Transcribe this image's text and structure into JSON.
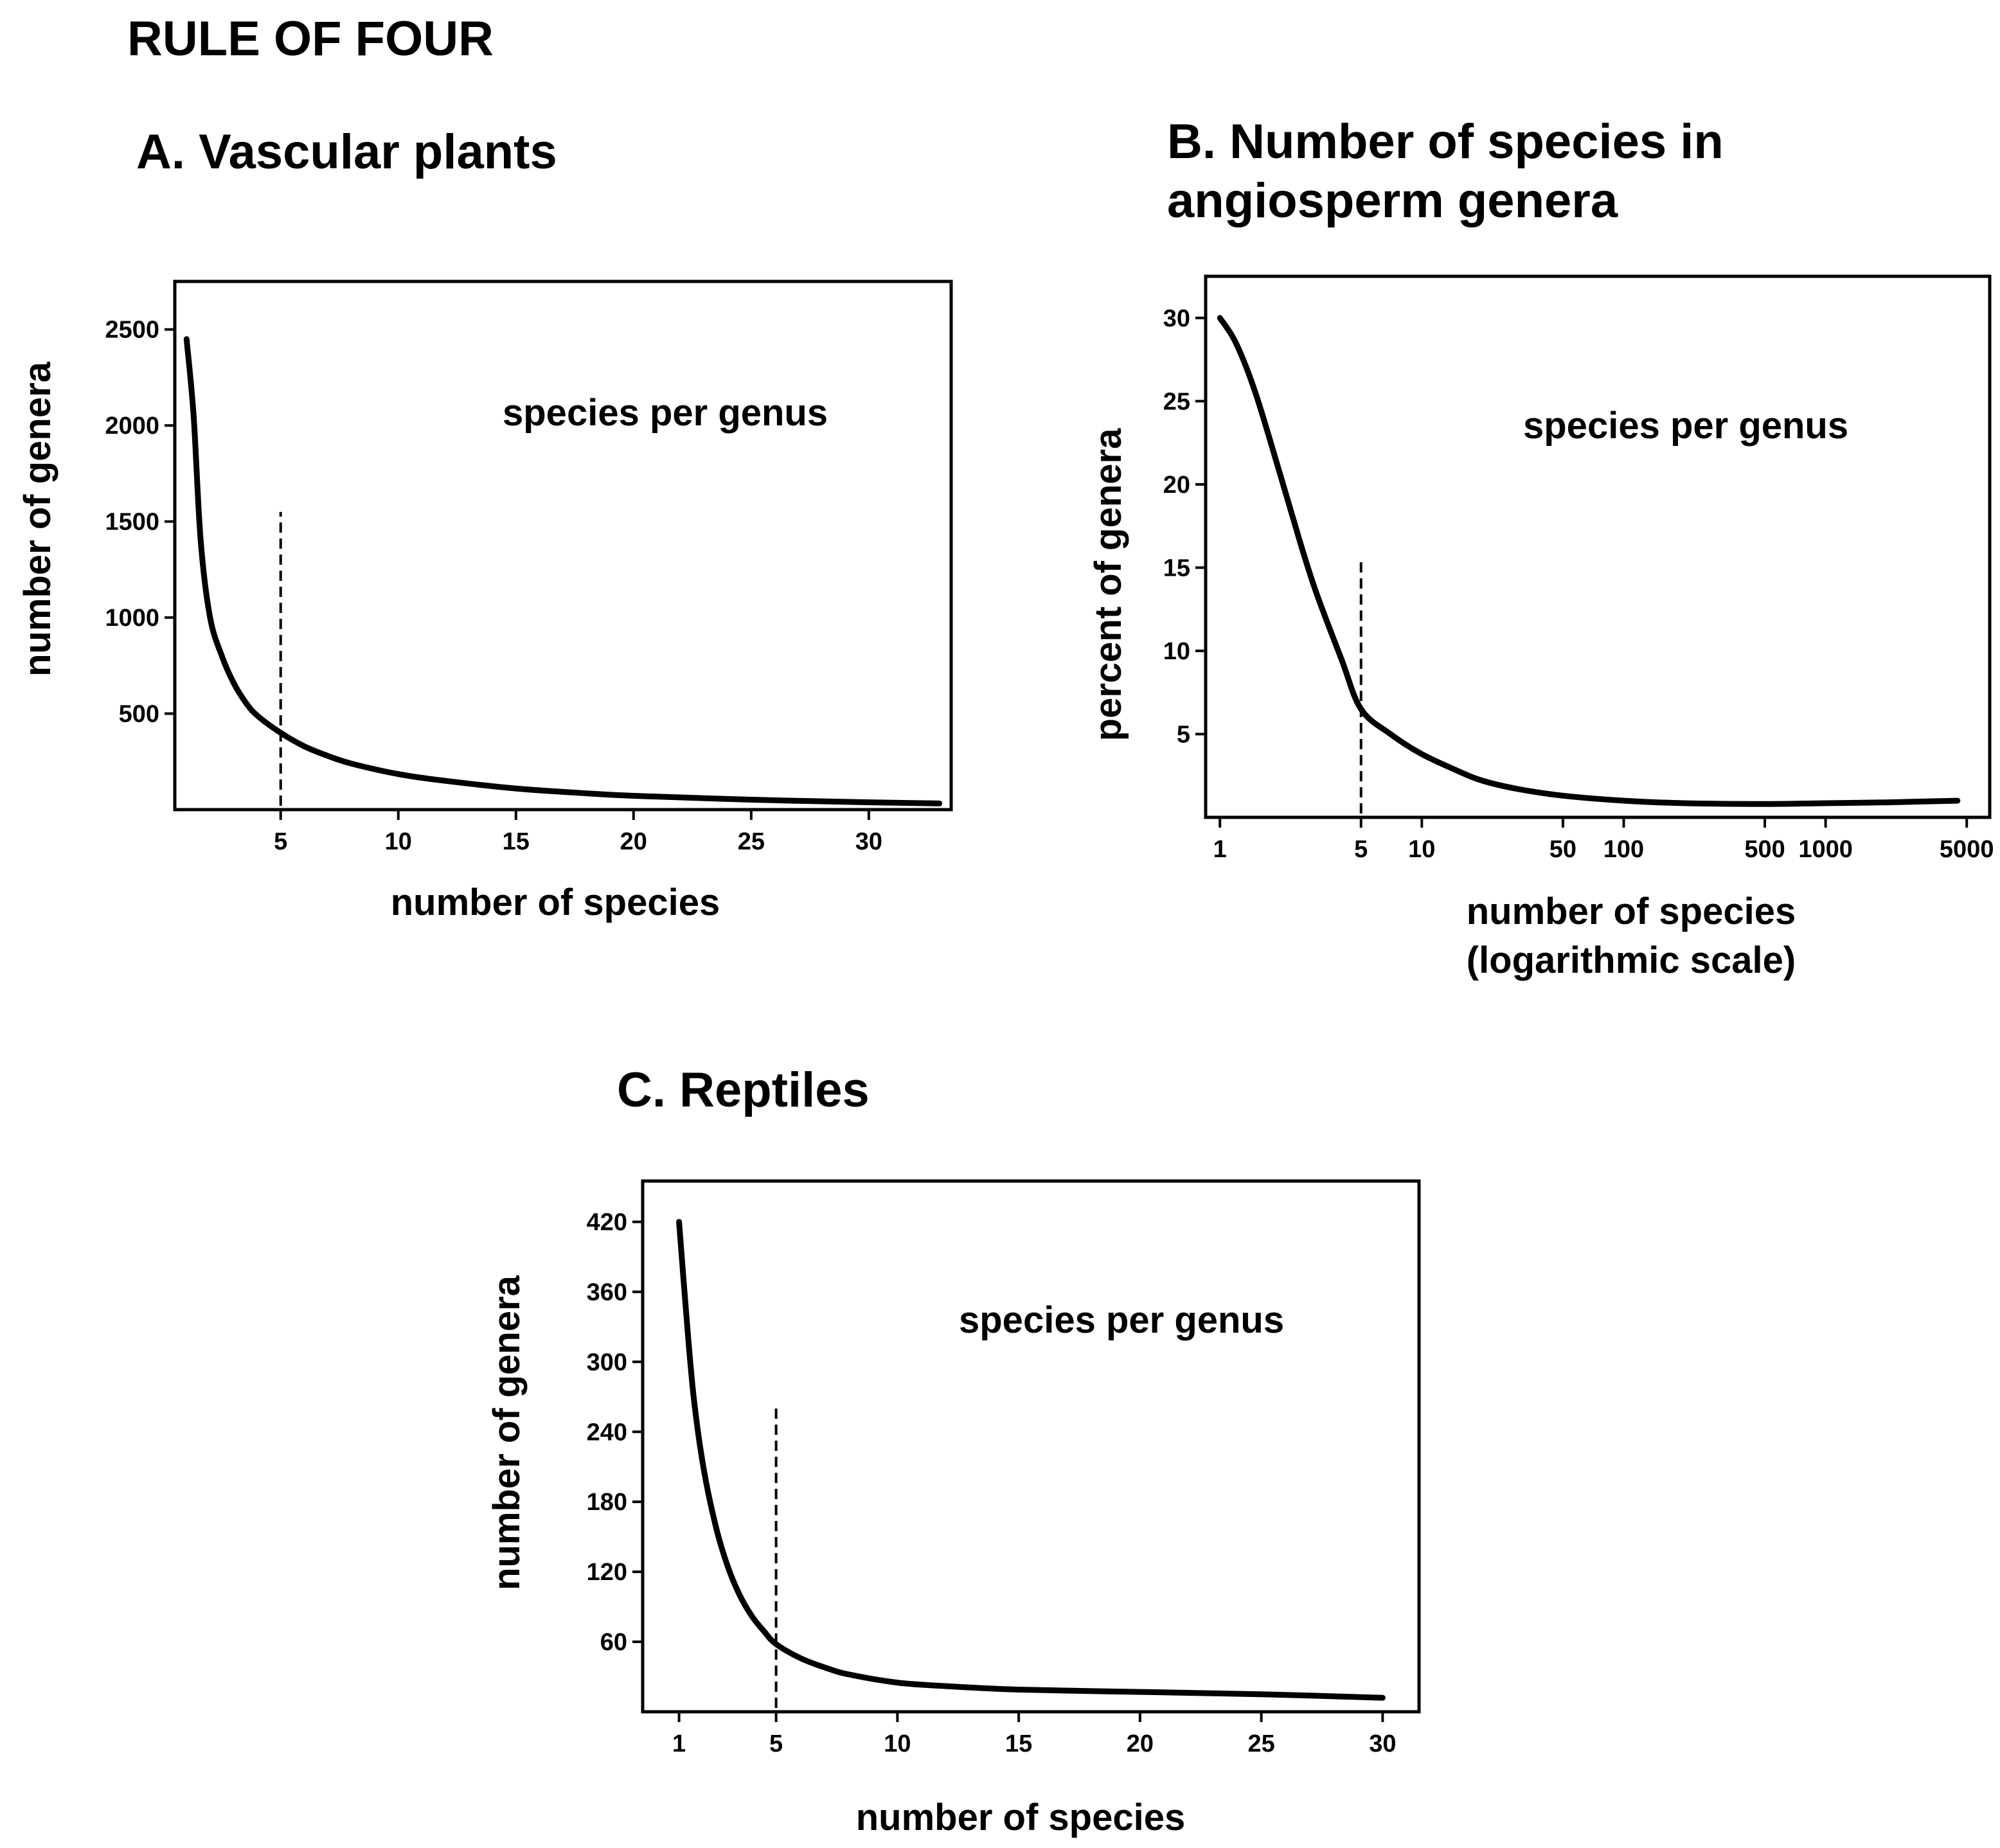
{
  "figure": {
    "title": "RULE OF FOUR"
  },
  "chart_data": [
    {
      "id": "A",
      "type": "line",
      "title": "A. Vascular plants",
      "xlabel": "number of species",
      "ylabel": "number of genera",
      "annotation": "species per genus",
      "xscale": "linear",
      "xlim": [
        0.5,
        33.5
      ],
      "ylim": [
        0,
        2750
      ],
      "xticks": [
        5,
        10,
        15,
        20,
        25,
        30
      ],
      "xtick_labels": [
        "5",
        "10",
        "15",
        "20",
        "25",
        "30"
      ],
      "yticks": [
        500,
        1000,
        1500,
        2000,
        2500
      ],
      "ytick_labels": [
        "500",
        "1000",
        "1500",
        "2000",
        "2500"
      ],
      "grid": false,
      "series": [
        {
          "x": [
            1,
            1.3,
            1.6,
            2,
            2.5,
            3,
            3.5,
            4,
            5,
            6,
            7,
            8,
            10,
            12,
            15,
            18,
            20,
            25,
            30,
            33
          ],
          "y": [
            2450,
            2050,
            1400,
            1000,
            800,
            660,
            560,
            490,
            400,
            330,
            280,
            240,
            185,
            150,
            110,
            85,
            72,
            52,
            38,
            32
          ]
        }
      ],
      "reference_line": {
        "x": 5,
        "y_range": [
          0,
          1550
        ],
        "style": "dashed"
      }
    },
    {
      "id": "B",
      "type": "line",
      "title_lines": [
        "B. Number of species in",
        "angiosperm genera"
      ],
      "xlabel_lines": [
        "number of species",
        "(logarithmic scale)"
      ],
      "ylabel": "percent of genera",
      "annotation": "species per genus",
      "xscale": "log",
      "xlim": [
        0.85,
        6500
      ],
      "ylim": [
        0,
        32.5
      ],
      "xticks": [
        1,
        5,
        10,
        50,
        100,
        500,
        1000,
        5000
      ],
      "xtick_labels": [
        "1",
        "5",
        "10",
        "50",
        "100",
        "500",
        "1000",
        "5000"
      ],
      "yticks": [
        5,
        10,
        15,
        20,
        25,
        30
      ],
      "ytick_labels": [
        "5",
        "10",
        "15",
        "20",
        "25",
        "30"
      ],
      "grid": false,
      "series": [
        {
          "x": [
            1,
            1.2,
            1.5,
            2,
            2.5,
            3,
            4,
            5,
            7,
            10,
            15,
            20,
            30,
            50,
            100,
            200,
            500,
            1000,
            2000,
            4500
          ],
          "y": [
            30,
            28.5,
            25.5,
            20.5,
            16.5,
            13.5,
            9.5,
            6.5,
            5.0,
            3.8,
            2.8,
            2.2,
            1.7,
            1.3,
            1.0,
            0.85,
            0.8,
            0.85,
            0.9,
            1.0
          ]
        }
      ],
      "reference_line": {
        "x": 5,
        "y_range": [
          0,
          15.5
        ],
        "style": "dashed"
      }
    },
    {
      "id": "C",
      "type": "line",
      "title": "C. Reptiles",
      "xlabel": "number of species",
      "ylabel": "number of genera",
      "annotation": "species per genus",
      "xscale": "linear",
      "xlim": [
        -0.5,
        31.5
      ],
      "ylim": [
        0,
        455
      ],
      "xticks": [
        1,
        5,
        10,
        15,
        20,
        25,
        30
      ],
      "xtick_labels": [
        "1",
        "5",
        "10",
        "15",
        "20",
        "25",
        "30"
      ],
      "yticks": [
        60,
        120,
        180,
        240,
        300,
        360,
        420
      ],
      "ytick_labels": [
        "60",
        "120",
        "180",
        "240",
        "300",
        "360",
        "420"
      ],
      "grid": false,
      "series": [
        {
          "x": [
            1,
            1.3,
            1.6,
            2,
            2.5,
            3,
            3.5,
            4,
            4.5,
            5,
            6,
            7,
            8,
            10,
            12,
            15,
            20,
            25,
            30
          ],
          "y": [
            420,
            340,
            270,
            210,
            160,
            125,
            100,
            82,
            69,
            58,
            46,
            38,
            32,
            25,
            22,
            19,
            17,
            15,
            12
          ]
        }
      ],
      "reference_line": {
        "x": 5,
        "y_range": [
          0,
          260
        ],
        "style": "dashed"
      }
    }
  ]
}
